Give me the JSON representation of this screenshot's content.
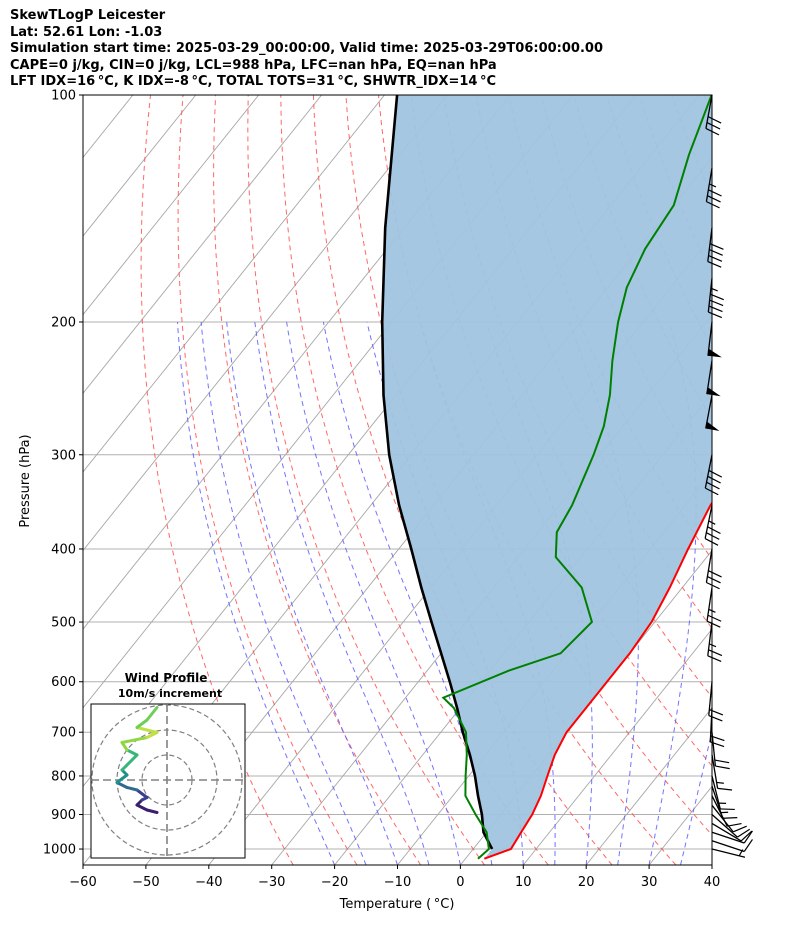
{
  "header": {
    "line1": "SkewTLogP Leicester",
    "line2": "Lat: 52.61   Lon: -1.03",
    "line3": "Simulation start time: 2025-03-29_00:00:00, Valid time: 2025-03-29T06:00:00.00",
    "line4": "CAPE=0 j/kg, CIN=0 j/kg, LCL=988 hPa, LFC=nan hPa, EQ=nan hPa",
    "line5": "LFT IDX=16 °C, K IDX=-8 °C, TOTAL TOTS=31 °C, SHWTR_IDX=14 °C"
  },
  "chart_data": {
    "type": "line",
    "subtype": "skew-t log-p",
    "xlabel": "Temperature ( °C)",
    "ylabel": "Pressure (hPa)",
    "xlim": [
      -60,
      40
    ],
    "ylim": [
      1050,
      100
    ],
    "yscale": "log",
    "x_ticks": [
      "−60",
      "−50",
      "−40",
      "−30",
      "−20",
      "−10",
      "0",
      "10",
      "20",
      "30",
      "40"
    ],
    "y_ticks": [
      "100",
      "200",
      "300",
      "400",
      "500",
      "600",
      "700",
      "800",
      "900",
      "1000"
    ],
    "grid": true,
    "series": [
      {
        "role": "temperature",
        "color": "#ff0000",
        "points": [
          [
            3,
            1030
          ],
          [
            6,
            1000
          ],
          [
            5.5,
            950
          ],
          [
            5,
            900
          ],
          [
            4,
            850
          ],
          [
            2.5,
            800
          ],
          [
            1,
            750
          ],
          [
            0,
            700
          ],
          [
            0,
            650
          ],
          [
            0,
            600
          ],
          [
            0,
            550
          ],
          [
            -0.5,
            500
          ],
          [
            -2,
            450
          ],
          [
            -4,
            400
          ],
          [
            -6,
            350
          ],
          [
            -7,
            300
          ],
          [
            -10,
            250
          ],
          [
            -12,
            230
          ],
          [
            -14,
            210
          ],
          [
            -16,
            190
          ],
          [
            -18,
            170
          ],
          [
            -21,
            150
          ],
          [
            -26,
            130
          ],
          [
            -32,
            110
          ],
          [
            -36,
            100
          ]
        ]
      },
      {
        "role": "dewpoint",
        "color": "#008000",
        "points": [
          [
            2,
            1030
          ],
          [
            2.5,
            1000
          ],
          [
            0,
            950
          ],
          [
            -4,
            900
          ],
          [
            -8,
            850
          ],
          [
            -10.5,
            800
          ],
          [
            -13,
            750
          ],
          [
            -16,
            700
          ],
          [
            -21,
            650
          ],
          [
            -24,
            630
          ],
          [
            -17,
            580
          ],
          [
            -11,
            550
          ],
          [
            -10,
            500
          ],
          [
            -16,
            450
          ],
          [
            -24,
            410
          ],
          [
            -27,
            380
          ],
          [
            -28,
            350
          ],
          [
            -31,
            300
          ],
          [
            -33,
            275
          ],
          [
            -36,
            250
          ],
          [
            -40,
            225
          ],
          [
            -44,
            200
          ],
          [
            -47,
            180
          ],
          [
            -49,
            160
          ],
          [
            -50,
            140
          ],
          [
            -54,
            120
          ],
          [
            -58,
            100
          ]
        ]
      },
      {
        "role": "parcel",
        "color": "#000000",
        "points": [
          [
            3,
            1000
          ],
          [
            -0.5,
            950
          ],
          [
            -3,
            900
          ],
          [
            -6,
            850
          ],
          [
            -9,
            800
          ],
          [
            -12.5,
            750
          ],
          [
            -16.5,
            700
          ],
          [
            -20.5,
            650
          ],
          [
            -25,
            600
          ],
          [
            -30,
            550
          ],
          [
            -35.5,
            500
          ],
          [
            -41.5,
            450
          ],
          [
            -48,
            400
          ],
          [
            -55.5,
            350
          ],
          [
            -63.5,
            300
          ],
          [
            -72,
            250
          ],
          [
            -81.5,
            200
          ],
          [
            -93,
            150
          ],
          [
            -108,
            100
          ]
        ]
      }
    ],
    "shaded_region": {
      "between": [
        "temperature",
        "parcel"
      ],
      "color": "#a0c4e0"
    },
    "wind_barbs": [
      {
        "p": 1000,
        "u": -8,
        "v": 2
      },
      {
        "p": 975,
        "u": -9,
        "v": 3
      },
      {
        "p": 950,
        "u": -12,
        "v": 4
      },
      {
        "p": 925,
        "u": -10,
        "v": 6
      },
      {
        "p": 900,
        "u": -9,
        "v": 8
      },
      {
        "p": 875,
        "u": -8,
        "v": 10
      },
      {
        "p": 850,
        "u": -6,
        "v": 12
      },
      {
        "p": 825,
        "u": -5,
        "v": 15
      },
      {
        "p": 800,
        "u": -4,
        "v": 16
      },
      {
        "p": 750,
        "u": -3,
        "v": 18
      },
      {
        "p": 700,
        "u": -2,
        "v": 20
      },
      {
        "p": 650,
        "u": 1,
        "v": 20
      },
      {
        "p": 600,
        "u": 2,
        "v": 21
      },
      {
        "p": 500,
        "u": 3,
        "v": 24
      },
      {
        "p": 450,
        "u": 4,
        "v": 27
      },
      {
        "p": 400,
        "u": 5,
        "v": 30
      },
      {
        "p": 350,
        "u": 7,
        "v": 34
      },
      {
        "p": 300,
        "u": 8,
        "v": 40
      },
      {
        "p": 250,
        "u": 9,
        "v": 48
      },
      {
        "p": 225,
        "u": 8,
        "v": 52
      },
      {
        "p": 200,
        "u": 6,
        "v": 50
      },
      {
        "p": 175,
        "u": 5,
        "v": 46
      },
      {
        "p": 150,
        "u": 5,
        "v": 40
      },
      {
        "p": 125,
        "u": 6,
        "v": 36
      },
      {
        "p": 100,
        "u": 6,
        "v": 33
      }
    ],
    "wind_profile": {
      "title": "Wind Profile",
      "subtitle": "10m/s increment",
      "rings": 3,
      "points": [
        [
          -1,
          13
        ],
        [
          -2,
          12
        ],
        [
          -3,
          10
        ],
        [
          -2.5,
          8
        ],
        [
          -2,
          7
        ],
        [
          -3,
          4
        ],
        [
          -4,
          3
        ],
        [
          -5,
          1
        ],
        [
          -4,
          -2
        ],
        [
          -4.5,
          -4
        ],
        [
          -4,
          -6
        ],
        [
          -3,
          -10
        ],
        [
          -4,
          -12
        ],
        [
          -4.5,
          -15
        ],
        [
          -2,
          -17
        ],
        [
          -1,
          -19
        ],
        [
          -3,
          -21
        ],
        [
          -2,
          -24
        ],
        [
          -1,
          -29
        ]
      ],
      "colors": [
        "#3b1f6e",
        "#3a3f8f",
        "#2f6b8e",
        "#21908c",
        "#35b779",
        "#8fd744",
        "#c0e046",
        "#6ece58"
      ]
    }
  }
}
